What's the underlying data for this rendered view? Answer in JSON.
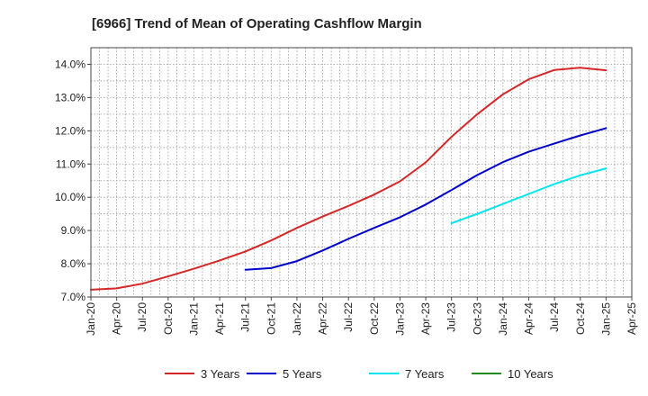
{
  "chart_data": {
    "type": "line",
    "title": "[6966]  Trend of Mean of Operating Cashflow Margin",
    "xlabel": "",
    "ylabel": "",
    "ylim": [
      7.0,
      14.5
    ],
    "yticks": [
      7.0,
      8.0,
      9.0,
      10.0,
      11.0,
      12.0,
      13.0,
      14.0
    ],
    "ytick_labels": [
      "7.0%",
      "8.0%",
      "9.0%",
      "10.0%",
      "11.0%",
      "12.0%",
      "13.0%",
      "14.0%"
    ],
    "x_range": [
      "2020-01",
      "2025-04"
    ],
    "xtick_labels": [
      "Jan-20",
      "Apr-20",
      "Jul-20",
      "Oct-20",
      "Jan-21",
      "Apr-21",
      "Jul-21",
      "Oct-21",
      "Jan-22",
      "Apr-22",
      "Jul-22",
      "Oct-22",
      "Jan-23",
      "Apr-23",
      "Jul-23",
      "Oct-23",
      "Jan-24",
      "Apr-24",
      "Jul-24",
      "Oct-24",
      "Jan-25",
      "Apr-25"
    ],
    "grid": true,
    "legend_position": "bottom",
    "series": [
      {
        "name": "3 Years",
        "color": "#d62728",
        "x": [
          "2020-01",
          "2020-04",
          "2020-07",
          "2020-10",
          "2021-01",
          "2021-04",
          "2021-07",
          "2021-10",
          "2022-01",
          "2022-04",
          "2022-07",
          "2022-10",
          "2023-01",
          "2023-04",
          "2023-07",
          "2023-10",
          "2024-01",
          "2024-04",
          "2024-07",
          "2024-10",
          "2025-01"
        ],
        "values": [
          7.22,
          7.26,
          7.4,
          7.62,
          7.85,
          8.1,
          8.37,
          8.7,
          9.08,
          9.42,
          9.74,
          10.08,
          10.48,
          11.05,
          11.82,
          12.5,
          13.1,
          13.55,
          13.83,
          13.9,
          13.82
        ]
      },
      {
        "name": "5 Years",
        "color": "#0000cc",
        "x": [
          "2021-07",
          "2021-10",
          "2022-01",
          "2022-04",
          "2022-07",
          "2022-10",
          "2023-01",
          "2023-04",
          "2023-07",
          "2023-10",
          "2024-01",
          "2024-04",
          "2024-07",
          "2024-10",
          "2025-01"
        ],
        "values": [
          7.82,
          7.87,
          8.08,
          8.4,
          8.75,
          9.08,
          9.4,
          9.78,
          10.22,
          10.67,
          11.06,
          11.37,
          11.62,
          11.86,
          12.08
        ]
      },
      {
        "name": "7 Years",
        "color": "#00e5ee",
        "x": [
          "2023-07",
          "2023-10",
          "2024-01",
          "2024-04",
          "2024-07",
          "2024-10",
          "2025-01"
        ],
        "values": [
          9.22,
          9.5,
          9.8,
          10.1,
          10.4,
          10.66,
          10.87
        ]
      },
      {
        "name": "10 Years",
        "color": "#228b22",
        "x": [],
        "values": []
      }
    ]
  }
}
